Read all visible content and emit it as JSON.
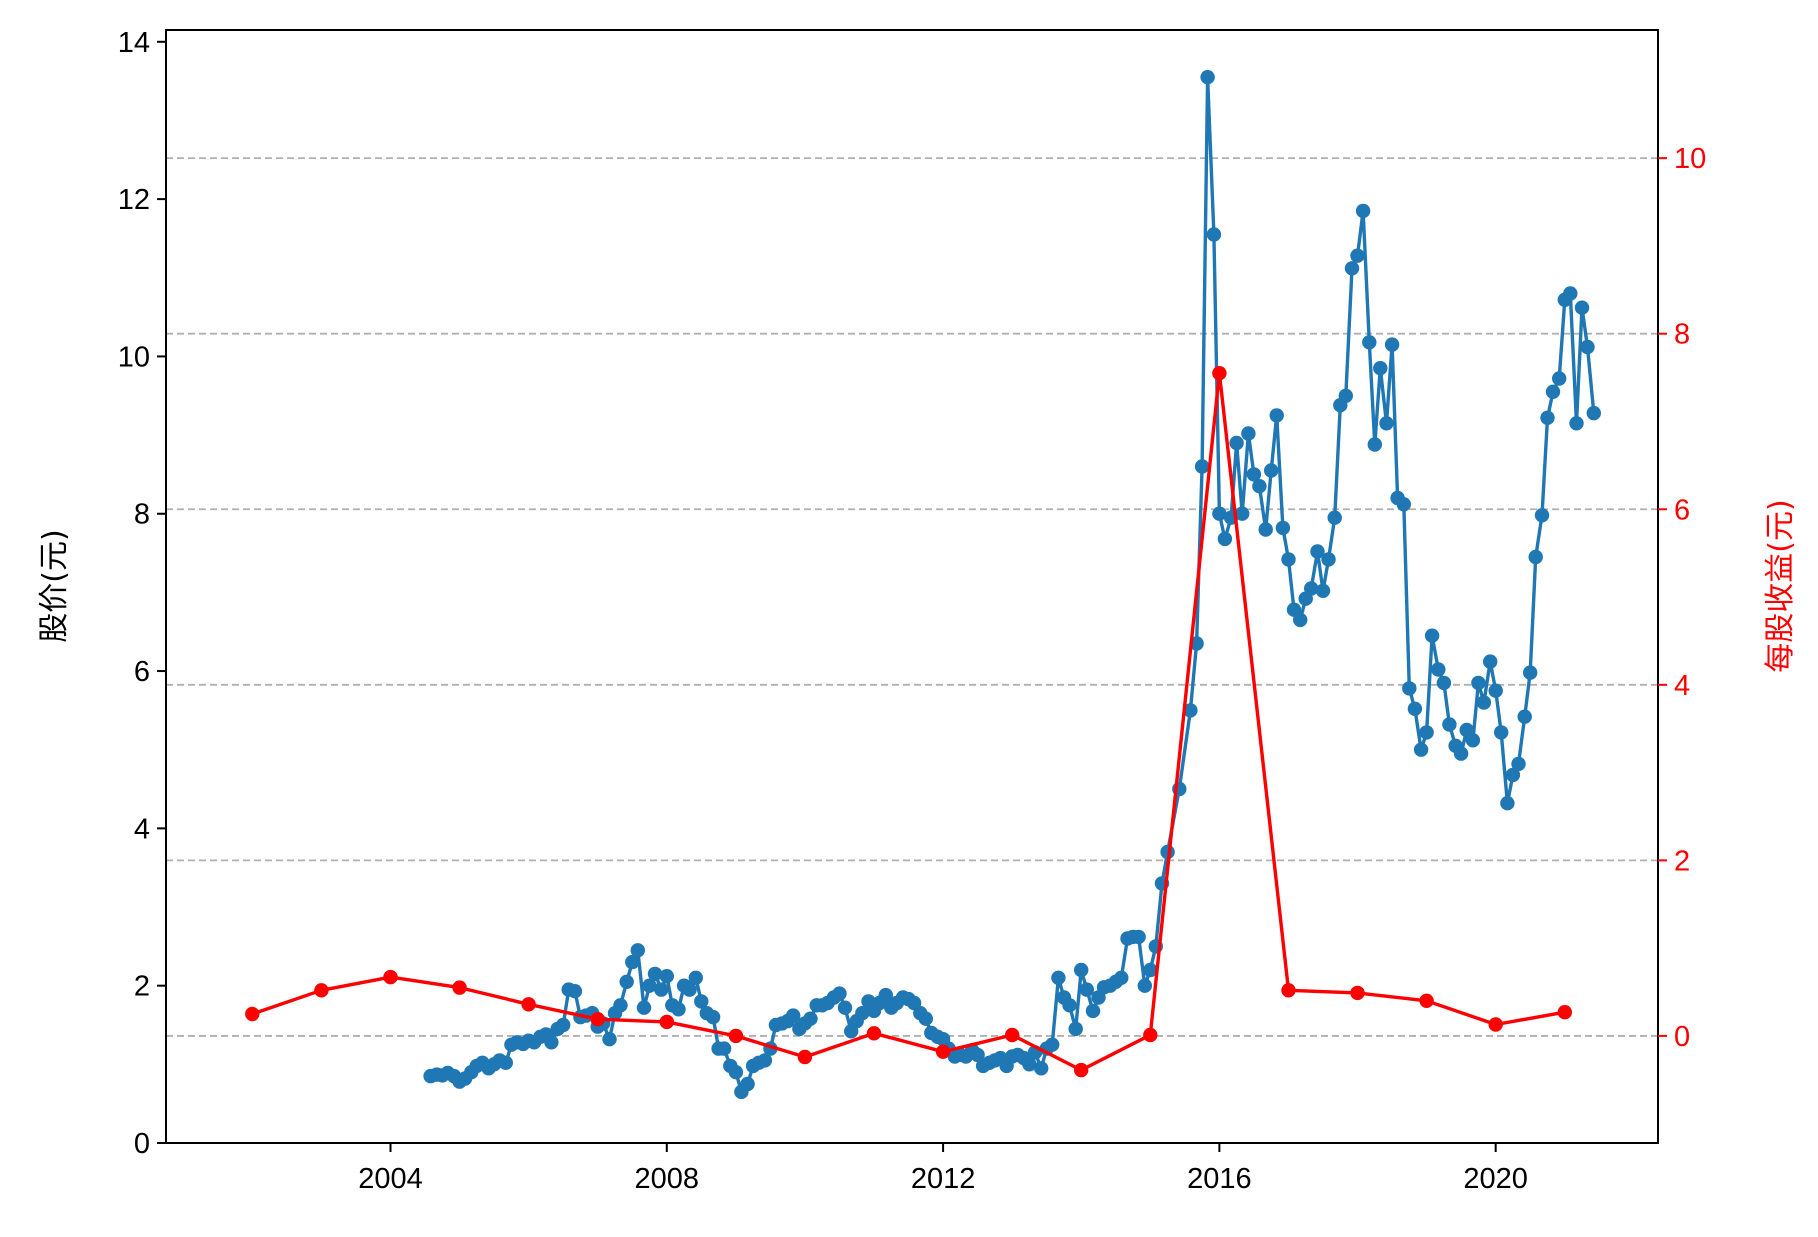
{
  "chart_data": {
    "type": "line",
    "title": "",
    "xlabel": "",
    "ylabel": "股价(元)",
    "ylabel_right": "每股收益(元)",
    "xlim": [
      2000.75,
      2022.35
    ],
    "ylim": [
      0,
      14.15
    ],
    "ylim_right": [
      -1.22,
      11.46
    ],
    "x_ticks": [
      2004,
      2008,
      2012,
      2016,
      2020
    ],
    "x_tick_labels": [
      "2004",
      "2008",
      "2012",
      "2016",
      "2020"
    ],
    "y_ticks": [
      0,
      2,
      4,
      6,
      8,
      10,
      12,
      14
    ],
    "y_tick_labels": [
      "0",
      "2",
      "4",
      "6",
      "8",
      "10",
      "12",
      "14"
    ],
    "y2_ticks": [
      0,
      2,
      4,
      6,
      8,
      10
    ],
    "y2_tick_labels": [
      "0",
      "2",
      "4",
      "6",
      "8",
      "10"
    ],
    "grid": "dashed horizontal lines at right-axis ticks",
    "colors": {
      "price": "#1f77b4",
      "eps": "#ff0000",
      "grid": "#b0b0b0",
      "axis": "#000000",
      "right_axis": "#ff0000"
    },
    "series": [
      {
        "axis": "left",
        "color": "#1f77b4",
        "points": [
          [
            2004.58,
            0.85
          ],
          [
            2004.67,
            0.87
          ],
          [
            2004.75,
            0.86
          ],
          [
            2004.83,
            0.89
          ],
          [
            2004.92,
            0.85
          ],
          [
            2005.0,
            0.78
          ],
          [
            2005.08,
            0.82
          ],
          [
            2005.17,
            0.9
          ],
          [
            2005.25,
            0.98
          ],
          [
            2005.33,
            1.02
          ],
          [
            2005.42,
            0.95
          ],
          [
            2005.5,
            1.0
          ],
          [
            2005.58,
            1.05
          ],
          [
            2005.67,
            1.02
          ],
          [
            2005.75,
            1.25
          ],
          [
            2005.83,
            1.28
          ],
          [
            2005.92,
            1.26
          ],
          [
            2006.0,
            1.3
          ],
          [
            2006.08,
            1.28
          ],
          [
            2006.17,
            1.35
          ],
          [
            2006.25,
            1.38
          ],
          [
            2006.33,
            1.28
          ],
          [
            2006.42,
            1.45
          ],
          [
            2006.5,
            1.5
          ],
          [
            2006.58,
            1.95
          ],
          [
            2006.67,
            1.93
          ],
          [
            2006.75,
            1.6
          ],
          [
            2006.83,
            1.62
          ],
          [
            2006.92,
            1.65
          ],
          [
            2007.0,
            1.48
          ],
          [
            2007.08,
            1.52
          ],
          [
            2007.17,
            1.32
          ],
          [
            2007.25,
            1.65
          ],
          [
            2007.33,
            1.75
          ],
          [
            2007.42,
            2.05
          ],
          [
            2007.5,
            2.3
          ],
          [
            2007.58,
            2.45
          ],
          [
            2007.67,
            1.72
          ],
          [
            2007.75,
            2.0
          ],
          [
            2007.83,
            2.15
          ],
          [
            2007.92,
            1.95
          ],
          [
            2008.0,
            2.12
          ],
          [
            2008.08,
            1.75
          ],
          [
            2008.17,
            1.7
          ],
          [
            2008.25,
            2.0
          ],
          [
            2008.33,
            1.95
          ],
          [
            2008.42,
            2.1
          ],
          [
            2008.5,
            1.8
          ],
          [
            2008.58,
            1.65
          ],
          [
            2008.67,
            1.6
          ],
          [
            2008.75,
            1.2
          ],
          [
            2008.83,
            1.2
          ],
          [
            2008.92,
            0.98
          ],
          [
            2009.0,
            0.9
          ],
          [
            2009.08,
            0.65
          ],
          [
            2009.17,
            0.75
          ],
          [
            2009.25,
            0.98
          ],
          [
            2009.33,
            1.02
          ],
          [
            2009.42,
            1.05
          ],
          [
            2009.5,
            1.2
          ],
          [
            2009.58,
            1.5
          ],
          [
            2009.67,
            1.52
          ],
          [
            2009.75,
            1.55
          ],
          [
            2009.83,
            1.62
          ],
          [
            2009.92,
            1.45
          ],
          [
            2010.0,
            1.52
          ],
          [
            2010.08,
            1.58
          ],
          [
            2010.17,
            1.75
          ],
          [
            2010.25,
            1.75
          ],
          [
            2010.33,
            1.78
          ],
          [
            2010.42,
            1.85
          ],
          [
            2010.5,
            1.9
          ],
          [
            2010.58,
            1.72
          ],
          [
            2010.67,
            1.42
          ],
          [
            2010.75,
            1.55
          ],
          [
            2010.83,
            1.65
          ],
          [
            2010.92,
            1.8
          ],
          [
            2011.0,
            1.68
          ],
          [
            2011.08,
            1.78
          ],
          [
            2011.17,
            1.88
          ],
          [
            2011.25,
            1.72
          ],
          [
            2011.33,
            1.78
          ],
          [
            2011.42,
            1.85
          ],
          [
            2011.5,
            1.83
          ],
          [
            2011.58,
            1.78
          ],
          [
            2011.67,
            1.65
          ],
          [
            2011.75,
            1.58
          ],
          [
            2011.83,
            1.4
          ],
          [
            2011.92,
            1.35
          ],
          [
            2012.0,
            1.32
          ],
          [
            2012.08,
            1.2
          ],
          [
            2012.17,
            1.1
          ],
          [
            2012.25,
            1.12
          ],
          [
            2012.33,
            1.1
          ],
          [
            2012.42,
            1.18
          ],
          [
            2012.5,
            1.12
          ],
          [
            2012.58,
            0.98
          ],
          [
            2012.67,
            1.02
          ],
          [
            2012.75,
            1.05
          ],
          [
            2012.83,
            1.08
          ],
          [
            2012.92,
            0.98
          ],
          [
            2013.0,
            1.1
          ],
          [
            2013.08,
            1.12
          ],
          [
            2013.17,
            1.08
          ],
          [
            2013.25,
            1.0
          ],
          [
            2013.33,
            1.15
          ],
          [
            2013.42,
            0.95
          ],
          [
            2013.5,
            1.2
          ],
          [
            2013.58,
            1.25
          ],
          [
            2013.67,
            2.1
          ],
          [
            2013.75,
            1.85
          ],
          [
            2013.83,
            1.75
          ],
          [
            2013.92,
            1.45
          ],
          [
            2014.0,
            2.2
          ],
          [
            2014.08,
            1.95
          ],
          [
            2014.17,
            1.68
          ],
          [
            2014.25,
            1.85
          ],
          [
            2014.33,
            1.98
          ],
          [
            2014.42,
            2.0
          ],
          [
            2014.5,
            2.05
          ],
          [
            2014.58,
            2.1
          ],
          [
            2014.67,
            2.6
          ],
          [
            2014.75,
            2.62
          ],
          [
            2014.83,
            2.62
          ],
          [
            2014.92,
            2.0
          ],
          [
            2015.0,
            2.2
          ],
          [
            2015.08,
            2.5
          ],
          [
            2015.17,
            3.3
          ],
          [
            2015.25,
            3.7
          ],
          [
            2015.42,
            4.5
          ],
          [
            2015.58,
            5.5
          ],
          [
            2015.67,
            6.35
          ],
          [
            2015.75,
            8.6
          ],
          [
            2015.83,
            13.55
          ],
          [
            2015.92,
            11.55
          ],
          [
            2016.0,
            8.0
          ],
          [
            2016.08,
            7.68
          ],
          [
            2016.17,
            7.95
          ],
          [
            2016.25,
            8.9
          ],
          [
            2016.33,
            8.0
          ],
          [
            2016.42,
            9.02
          ],
          [
            2016.5,
            8.5
          ],
          [
            2016.58,
            8.35
          ],
          [
            2016.67,
            7.8
          ],
          [
            2016.75,
            8.55
          ],
          [
            2016.83,
            9.25
          ],
          [
            2016.92,
            7.82
          ],
          [
            2017.0,
            7.42
          ],
          [
            2017.08,
            6.78
          ],
          [
            2017.17,
            6.65
          ],
          [
            2017.25,
            6.92
          ],
          [
            2017.33,
            7.05
          ],
          [
            2017.42,
            7.52
          ],
          [
            2017.5,
            7.02
          ],
          [
            2017.58,
            7.42
          ],
          [
            2017.67,
            7.95
          ],
          [
            2017.75,
            9.38
          ],
          [
            2017.83,
            9.5
          ],
          [
            2017.92,
            11.12
          ],
          [
            2018.0,
            11.28
          ],
          [
            2018.08,
            11.85
          ],
          [
            2018.17,
            10.18
          ],
          [
            2018.25,
            8.88
          ],
          [
            2018.33,
            9.85
          ],
          [
            2018.42,
            9.15
          ],
          [
            2018.5,
            10.15
          ],
          [
            2018.58,
            8.2
          ],
          [
            2018.67,
            8.12
          ],
          [
            2018.75,
            5.78
          ],
          [
            2018.83,
            5.52
          ],
          [
            2018.92,
            5.0
          ],
          [
            2019.0,
            5.22
          ],
          [
            2019.08,
            6.45
          ],
          [
            2019.17,
            6.02
          ],
          [
            2019.25,
            5.85
          ],
          [
            2019.33,
            5.32
          ],
          [
            2019.42,
            5.05
          ],
          [
            2019.5,
            4.95
          ],
          [
            2019.58,
            5.25
          ],
          [
            2019.67,
            5.12
          ],
          [
            2019.75,
            5.85
          ],
          [
            2019.83,
            5.6
          ],
          [
            2019.92,
            6.12
          ],
          [
            2020.0,
            5.75
          ],
          [
            2020.08,
            5.22
          ],
          [
            2020.17,
            4.32
          ],
          [
            2020.25,
            4.68
          ],
          [
            2020.33,
            4.82
          ],
          [
            2020.42,
            5.42
          ],
          [
            2020.5,
            5.98
          ],
          [
            2020.58,
            7.45
          ],
          [
            2020.67,
            7.98
          ],
          [
            2020.75,
            9.22
          ],
          [
            2020.83,
            9.55
          ],
          [
            2020.92,
            9.72
          ],
          [
            2021.0,
            10.72
          ],
          [
            2021.08,
            10.8
          ],
          [
            2021.17,
            9.15
          ],
          [
            2021.25,
            10.62
          ],
          [
            2021.33,
            10.12
          ],
          [
            2021.42,
            9.28
          ]
        ]
      },
      {
        "axis": "right",
        "color": "#ff0000",
        "points": [
          [
            2002.0,
            0.25
          ],
          [
            2003.0,
            0.52
          ],
          [
            2004.0,
            0.67
          ],
          [
            2005.0,
            0.55
          ],
          [
            2006.0,
            0.36
          ],
          [
            2007.0,
            0.19
          ],
          [
            2008.0,
            0.16
          ],
          [
            2009.0,
            0.0
          ],
          [
            2010.0,
            -0.24
          ],
          [
            2011.0,
            0.03
          ],
          [
            2012.0,
            -0.18
          ],
          [
            2013.0,
            0.01
          ],
          [
            2014.0,
            -0.39
          ],
          [
            2015.0,
            0.01
          ],
          [
            2016.0,
            7.55
          ],
          [
            2017.0,
            0.52
          ],
          [
            2018.0,
            0.49
          ],
          [
            2019.0,
            0.4
          ],
          [
            2020.0,
            0.13
          ],
          [
            2021.0,
            0.27
          ]
        ]
      }
    ]
  }
}
